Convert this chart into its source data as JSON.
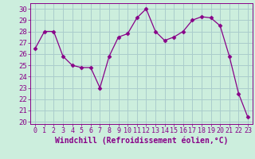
{
  "x": [
    0,
    1,
    2,
    3,
    4,
    5,
    6,
    7,
    8,
    9,
    10,
    11,
    12,
    13,
    14,
    15,
    16,
    17,
    18,
    19,
    20,
    21,
    22,
    23
  ],
  "y": [
    26.5,
    28.0,
    28.0,
    25.8,
    25.0,
    24.8,
    24.8,
    23.0,
    25.8,
    27.5,
    27.8,
    29.2,
    30.0,
    28.0,
    27.2,
    27.5,
    28.0,
    29.0,
    29.3,
    29.2,
    28.5,
    25.8,
    22.5,
    20.4
  ],
  "line_color": "#880088",
  "marker": "D",
  "marker_size": 2.5,
  "bg_color": "#cceedd",
  "grid_color": "#aacccc",
  "ylabel_ticks": [
    20,
    21,
    22,
    23,
    24,
    25,
    26,
    27,
    28,
    29,
    30
  ],
  "ylim": [
    19.8,
    30.5
  ],
  "xlim": [
    -0.5,
    23.5
  ],
  "xlabel": "Windchill (Refroidissement éolien,°C)",
  "tick_fontsize": 6.5,
  "label_fontsize": 7.0
}
